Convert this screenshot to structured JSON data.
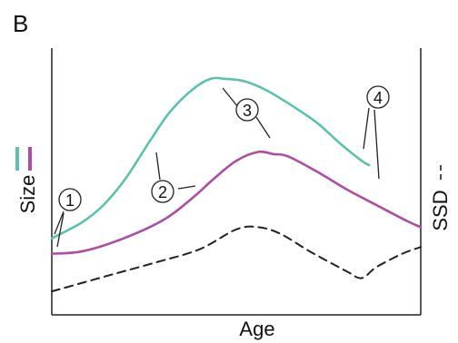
{
  "panel_label": "B",
  "chart_data": {
    "type": "line",
    "xlabel": "Age",
    "ylabel_left": "Size",
    "ylabel_right": "SSD",
    "xlim": [
      0,
      100
    ],
    "ylim": [
      0,
      100
    ],
    "grid": false,
    "left_legend_swatches": [
      {
        "color": "#5cc2ad"
      },
      {
        "color": "#ad4da6"
      }
    ],
    "right_legend_swatch": {
      "style": "dashed",
      "color": "#222222"
    },
    "series": [
      {
        "color": "#5cc2ad",
        "style": "solid",
        "x": [
          0,
          8,
          14,
          20,
          27,
          32,
          38,
          43,
          47,
          52,
          58,
          65,
          72,
          78,
          84,
          86
        ],
        "y": [
          26,
          33,
          41,
          53,
          71,
          83,
          93,
          98,
          98,
          97,
          93,
          86,
          78,
          69,
          61,
          59
        ]
      },
      {
        "color": "#ad4da6",
        "style": "solid",
        "x": [
          0,
          8,
          18,
          30,
          38,
          44,
          50,
          56,
          60,
          64,
          72,
          80,
          88,
          96,
          100
        ],
        "y": [
          19,
          20,
          25,
          34,
          44,
          53,
          61,
          65,
          64,
          63,
          56,
          48,
          41,
          34,
          31
        ]
      },
      {
        "color": "#222222",
        "style": "dashed",
        "x": [
          0,
          15,
          28,
          40,
          50,
          56,
          62,
          70,
          80,
          84,
          88,
          95,
          100
        ],
        "y": [
          2,
          9,
          15,
          21,
          30,
          31,
          28,
          20,
          11,
          8,
          13,
          19,
          22
        ]
      }
    ],
    "annotations": [
      {
        "label": "1"
      },
      {
        "label": "2"
      },
      {
        "label": "3"
      },
      {
        "label": "4"
      }
    ]
  }
}
